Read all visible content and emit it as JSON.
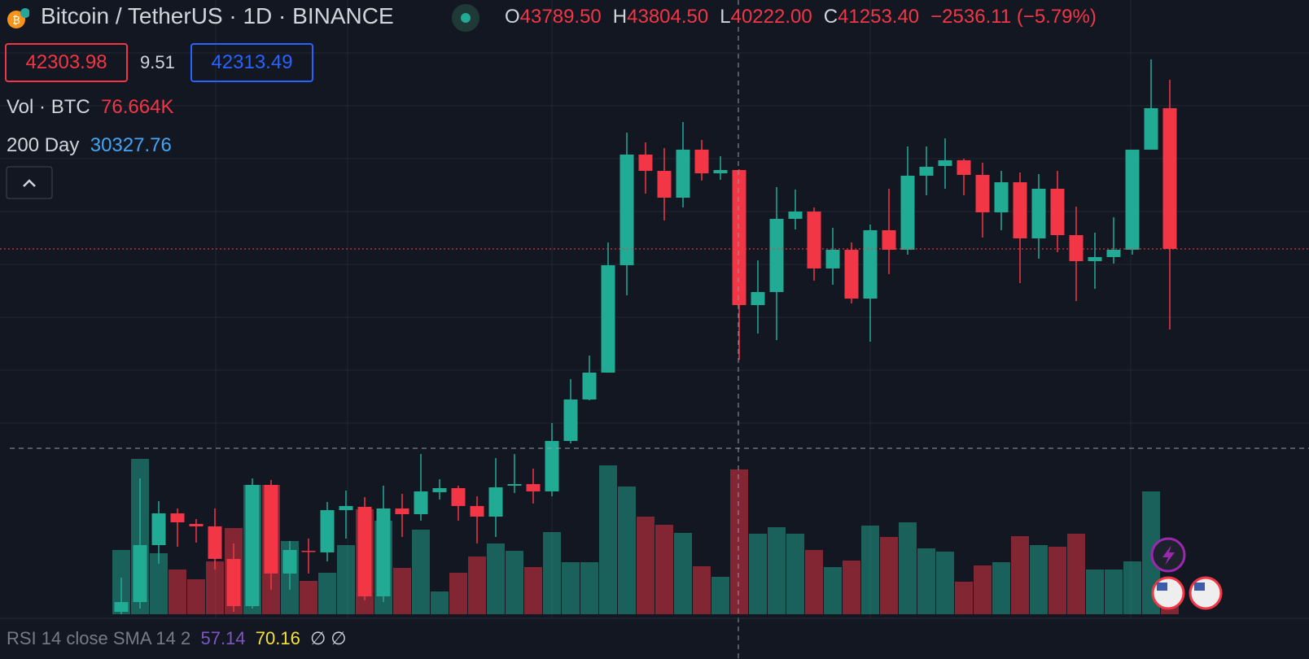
{
  "header": {
    "symbol": "Bitcoin / TetherUS · 1D · BINANCE",
    "ohlc": [
      {
        "label": "O",
        "value": "43789.50"
      },
      {
        "label": "H",
        "value": "43804.50"
      },
      {
        "label": "L",
        "value": "40222.00"
      },
      {
        "label": "C",
        "value": "41253.40"
      }
    ],
    "change": "−2536.11 (−5.79%)"
  },
  "order": {
    "sell": "42303.98",
    "spread": "9.51",
    "buy": "42313.49"
  },
  "indicators": [
    {
      "name": "Vol · BTC",
      "value": "76.664K"
    },
    {
      "name": "200 Day",
      "value": "30327.76"
    }
  ],
  "rsi": {
    "name": "RSI 14 close SMA 14 2",
    "value": "57.14",
    "sma": "70.16",
    "extra": "∅ ∅"
  },
  "chart_data": {
    "type": "candlestick",
    "up_color": "#22ab94",
    "down_color": "#f23645",
    "ylim": [
      35370,
      46983
    ],
    "volume_ylim": [
      0,
      325178
    ],
    "open": [
      35492,
      35676,
      36745,
      37341,
      37143,
      37097,
      36486,
      35599,
      37876,
      36211,
      36638,
      36608,
      37402,
      37464,
      35783,
      37433,
      37326,
      37739,
      37815,
      37479,
      37280,
      37861,
      37891,
      37754,
      38701,
      39480,
      39985,
      42002,
      44080,
      43774,
      43270,
      44172,
      43728,
      43789.5,
      41253.4,
      41498,
      42873,
      43010,
      41941,
      42292,
      41375,
      42659,
      42292,
      43683,
      43866,
      43973,
      43698,
      42995,
      43560,
      42506,
      43438,
      42567,
      42078,
      42155,
      42292,
      44172,
      44951
    ],
    "high": [
      36134,
      37998,
      37571,
      37433,
      37234,
      37433,
      36776,
      37998,
      37968,
      36822,
      36868,
      37555,
      37769,
      37647,
      37861,
      37708,
      38457,
      37983,
      37861,
      37662,
      38380,
      38457,
      38182,
      39037,
      39862,
      40306,
      42430,
      44492,
      44309,
      44202,
      44691,
      44355,
      44049,
      43804.5,
      42093,
      43469,
      43423,
      43087,
      42705,
      42430,
      42766,
      43438,
      44233,
      44233,
      44385,
      44003,
      43927,
      43774,
      43744,
      43713,
      43774,
      43102,
      42613,
      42903,
      44172,
      45868,
      45486
    ],
    "low": [
      35447,
      35554,
      36394,
      36715,
      36791,
      36287,
      35492,
      35554,
      35905,
      35905,
      36211,
      36440,
      36868,
      35706,
      35676,
      36898,
      37204,
      37601,
      37204,
      36776,
      36898,
      37723,
      37525,
      37662,
      38655,
      39465,
      39985,
      41436,
      43346,
      42842,
      43087,
      43591,
      43606,
      40222,
      40718,
      40596,
      42674,
      41711,
      41635,
      41284,
      40565,
      41834,
      42200,
      43316,
      43438,
      43316,
      42521,
      42659,
      41666,
      42124,
      42246,
      41329,
      41559,
      42032,
      42200,
      44172,
      40795
    ],
    "close": [
      35676,
      36745,
      37341,
      37173,
      37097,
      36486,
      35599,
      37876,
      36211,
      36654,
      36623,
      37402,
      37479,
      35783,
      37433,
      37326,
      37754,
      37815,
      37479,
      37280,
      37830,
      37891,
      37754,
      38701,
      39480,
      39985,
      42002,
      44080,
      43774,
      43270,
      44172,
      43728,
      43789.5,
      41253.4,
      41498,
      42873,
      43010,
      41941,
      42292,
      41375,
      42659,
      42292,
      43683,
      43851,
      43973,
      43698,
      42995,
      43560,
      42506,
      43438,
      42567,
      42078,
      42155,
      42292,
      44172,
      44951,
      42308
    ],
    "volume": [
      34025,
      82264,
      32303,
      23689,
      18520,
      27996,
      45654,
      68481,
      68481,
      38763,
      17659,
      21966,
      36610,
      55560,
      49531,
      24550,
      44793,
      12060,
      21966,
      30580,
      37471,
      33595,
      24981,
      43501,
      27565,
      27565,
      78818,
      67620,
      51684,
      47377,
      43070,
      25411,
      19812,
      76664,
      42639,
      46085,
      42639,
      34025,
      24981,
      28426,
      46946,
      40917,
      48669,
      34887,
      33164,
      17228,
      25842,
      27565,
      41347,
      36610,
      35748,
      42639,
      23689,
      23689,
      27996,
      65036,
      6461
    ]
  }
}
